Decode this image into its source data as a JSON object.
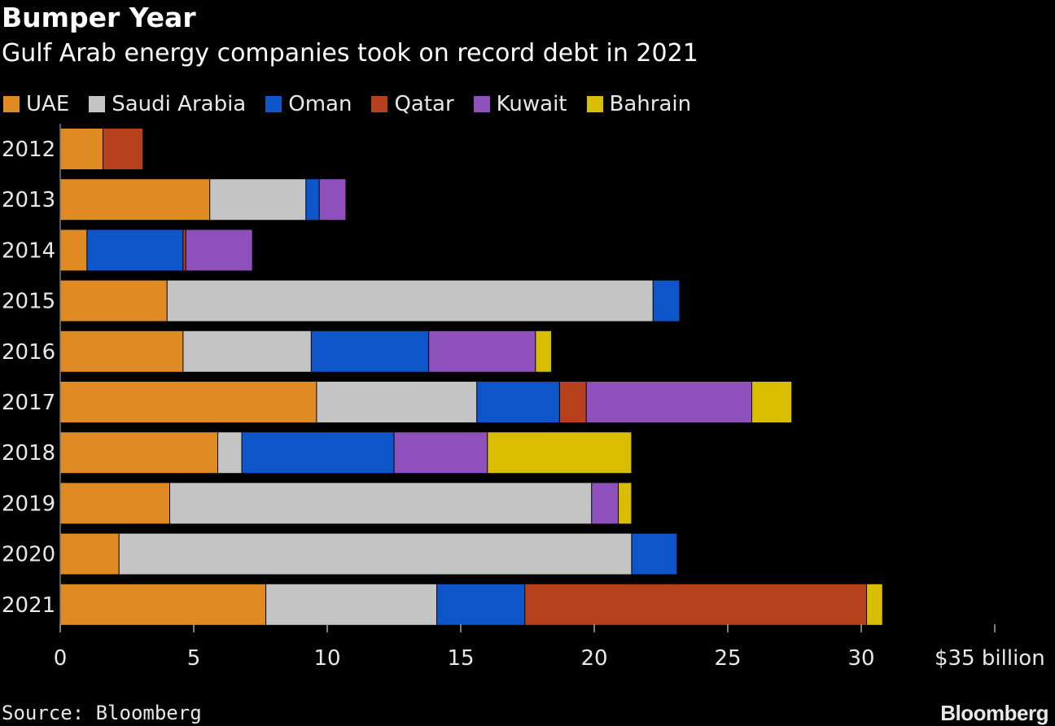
{
  "chart_data": {
    "type": "bar",
    "orientation": "horizontal",
    "stacked": true,
    "title": "Bumper Year",
    "subtitle": "Gulf Arab energy companies took on record debt in 2021",
    "categories": [
      "2012",
      "2013",
      "2014",
      "2015",
      "2016",
      "2017",
      "2018",
      "2019",
      "2020",
      "2021"
    ],
    "series": [
      {
        "name": "UAE",
        "color": "#e08a24",
        "values": [
          1.6,
          5.6,
          1.0,
          4.0,
          4.6,
          9.6,
          5.9,
          4.1,
          2.2,
          7.7
        ]
      },
      {
        "name": "Saudi Arabia",
        "color": "#c4c4c4",
        "values": [
          0,
          3.6,
          0,
          18.2,
          4.8,
          6.0,
          0.9,
          15.8,
          19.2,
          6.4
        ]
      },
      {
        "name": "Oman",
        "color": "#0d55c9",
        "values": [
          0,
          0.5,
          3.6,
          1.0,
          4.4,
          3.1,
          5.7,
          0,
          1.7,
          3.3
        ]
      },
      {
        "name": "Qatar",
        "color": "#b5401b",
        "values": [
          1.5,
          0,
          0.1,
          0,
          0,
          1.0,
          0,
          0,
          0,
          12.8
        ]
      },
      {
        "name": "Kuwait",
        "color": "#8e51bc",
        "values": [
          0,
          1.0,
          2.5,
          0,
          4.0,
          6.2,
          3.5,
          1.0,
          0,
          0
        ]
      },
      {
        "name": "Bahrain",
        "color": "#d9bd00",
        "values": [
          0,
          0,
          0,
          0,
          0.6,
          1.5,
          5.4,
          0.5,
          0,
          0.6
        ]
      }
    ],
    "x_ticks": [
      "0",
      "5",
      "10",
      "15",
      "20",
      "25",
      "30",
      "$35 billion"
    ],
    "xlim": [
      0,
      35
    ],
    "grid": false,
    "legend_position": "top-left"
  },
  "source": "Source: Bloomberg",
  "brand": "Bloomberg"
}
